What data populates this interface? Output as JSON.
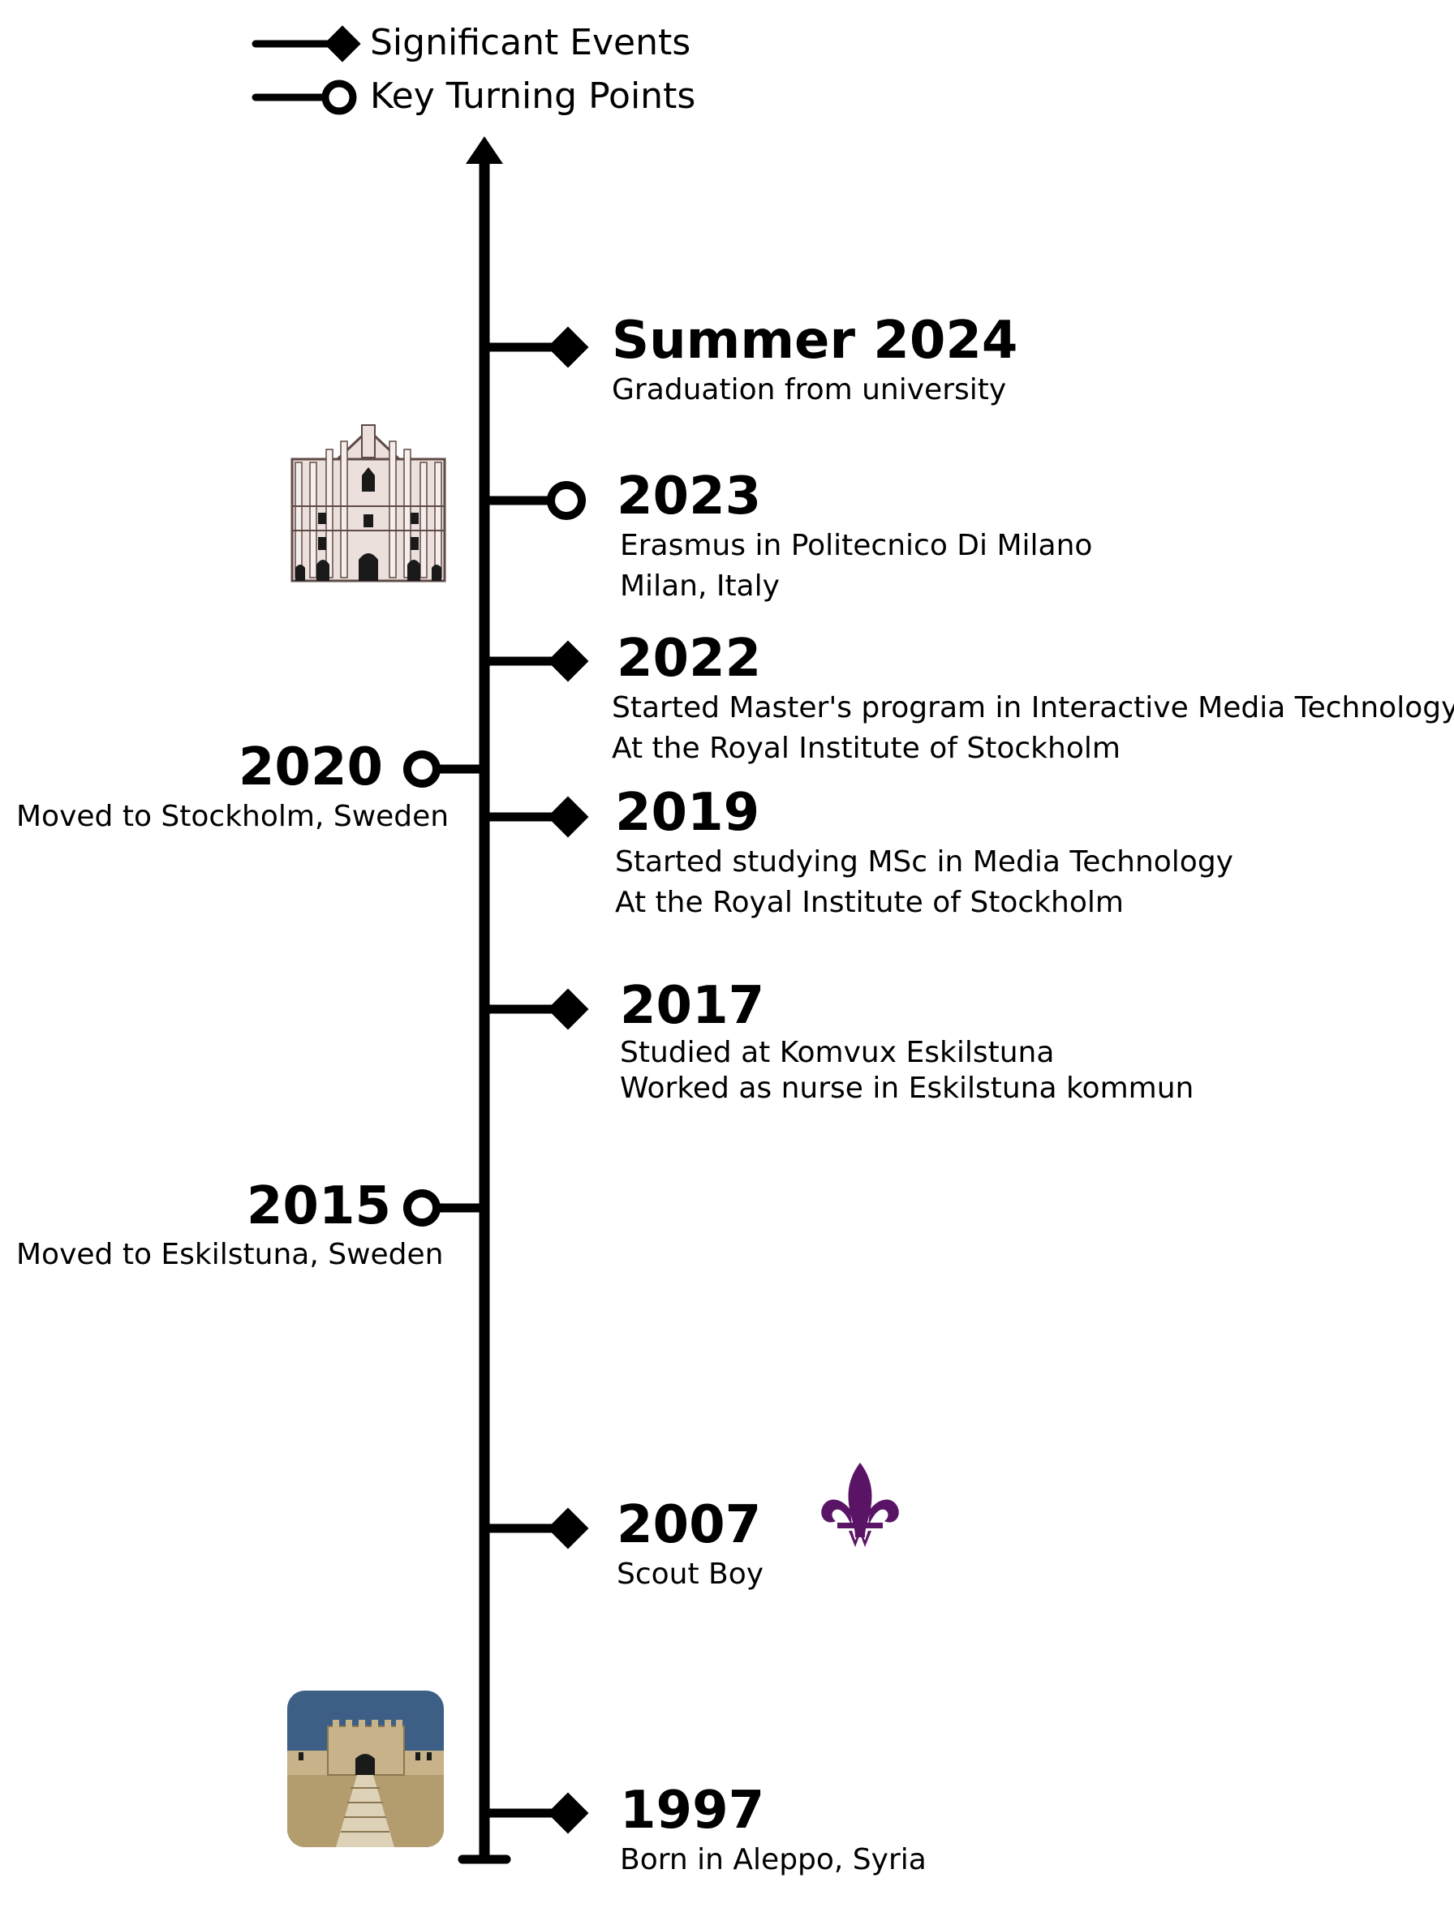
{
  "legend": {
    "significant_label": "Significant Events",
    "turning_label": "Key Turning Points"
  },
  "events": [
    {
      "id": "summer-2024",
      "year": "Summer 2024",
      "lines": [
        "Graduation from university"
      ],
      "marker": "diamond",
      "side": "right"
    },
    {
      "id": "2023",
      "year": "2023",
      "lines": [
        "Erasmus in Politecnico Di Milano",
        "Milan, Italy"
      ],
      "marker": "circle",
      "side": "right"
    },
    {
      "id": "2022",
      "year": "2022",
      "lines": [
        "Started Master's program in Interactive Media Technology",
        "At the Royal Institute of Stockholm"
      ],
      "marker": "diamond",
      "side": "right"
    },
    {
      "id": "2020",
      "year": "2020",
      "lines": [
        "Moved to Stockholm, Sweden"
      ],
      "marker": "circle",
      "side": "left"
    },
    {
      "id": "2019",
      "year": "2019",
      "lines": [
        "Started studying MSc in Media Technology",
        "At the Royal Institute of Stockholm"
      ],
      "marker": "diamond",
      "side": "right"
    },
    {
      "id": "2017",
      "year": "2017",
      "lines": [
        "Studied at Komvux Eskilstuna",
        "Worked as nurse in Eskilstuna kommun"
      ],
      "marker": "diamond",
      "side": "right"
    },
    {
      "id": "2015",
      "year": "2015",
      "lines": [
        "Moved to Eskilstuna, Sweden"
      ],
      "marker": "circle",
      "side": "left"
    },
    {
      "id": "2007",
      "year": "2007",
      "lines": [
        "Scout Boy"
      ],
      "marker": "diamond",
      "side": "right"
    },
    {
      "id": "1997",
      "year": "1997",
      "lines": [
        "Born in Aleppo, Syria"
      ],
      "marker": "diamond",
      "side": "right"
    }
  ],
  "icons": {
    "cathedral": "milan-cathedral-icon",
    "scout": "scout-fleur-de-lis-icon",
    "citadel": "aleppo-citadel-icon"
  },
  "colors": {
    "line": "#000000",
    "scout": "#5a1466",
    "cathedral_fill": "#ece0dc",
    "cathedral_stroke": "#5e4a46",
    "citadel_sky": "#3d5f86",
    "citadel_ground": "#b39c6d",
    "citadel_wall": "#c7b28a"
  }
}
